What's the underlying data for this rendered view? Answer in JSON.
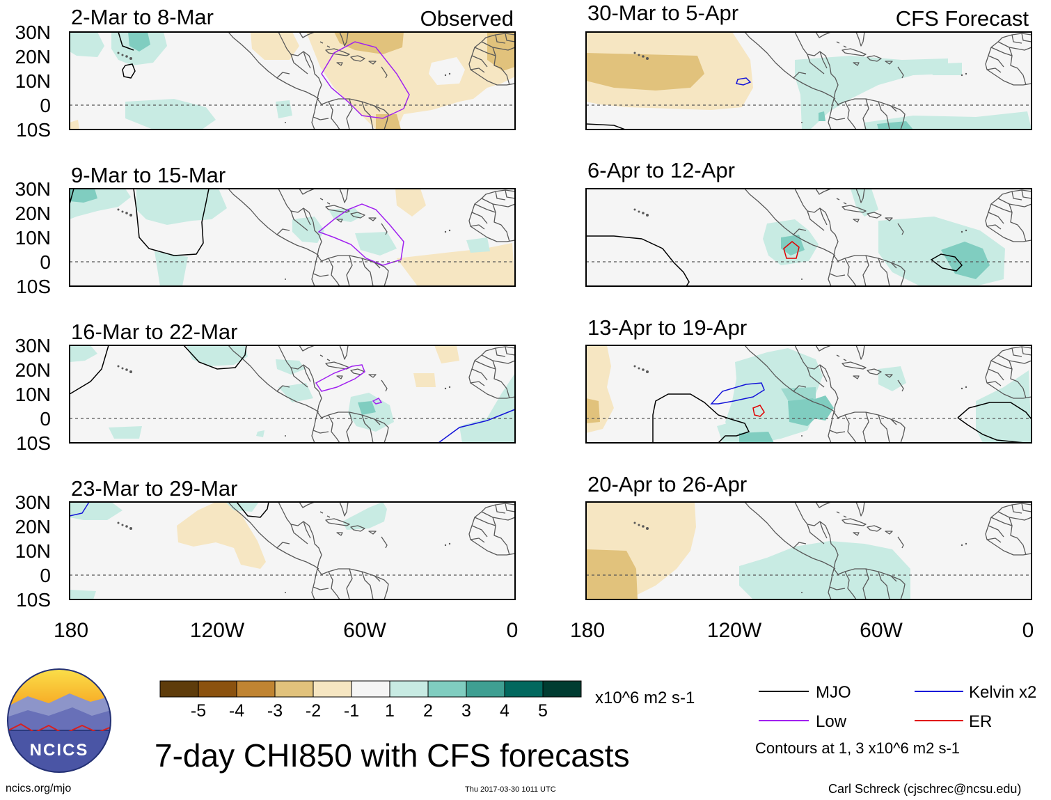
{
  "title": "7-day CHI850 with CFS forecasts",
  "header_labels": {
    "observed": "Observed",
    "forecast": "CFS Forecast"
  },
  "panels": [
    {
      "period": "2-Mar to 8-Mar",
      "column": "observed",
      "tag": "Observed"
    },
    {
      "period": "9-Mar to 15-Mar",
      "column": "observed",
      "tag": ""
    },
    {
      "period": "16-Mar to 22-Mar",
      "column": "observed",
      "tag": ""
    },
    {
      "period": "23-Mar to 29-Mar",
      "column": "observed",
      "tag": ""
    },
    {
      "period": "30-Mar to 5-Apr",
      "column": "forecast",
      "tag": "CFS Forecast"
    },
    {
      "period": "6-Apr to 12-Apr",
      "column": "forecast",
      "tag": ""
    },
    {
      "period": "13-Apr to 19-Apr",
      "column": "forecast",
      "tag": ""
    },
    {
      "period": "20-Apr to 26-Apr",
      "column": "forecast",
      "tag": ""
    }
  ],
  "axes": {
    "lat_labels": [
      "30N",
      "20N",
      "10N",
      "0",
      "10S"
    ],
    "lon_labels": [
      "180",
      "120W",
      "60W",
      "0"
    ]
  },
  "colorbar": {
    "colors": [
      "#5e3c0b",
      "#8b520f",
      "#c08432",
      "#e1c27c",
      "#f6e6c2",
      "#f5f5f5",
      "#c8ebe3",
      "#80cdc0",
      "#3f9f92",
      "#02685e",
      "#003c31"
    ],
    "tick_labels": [
      "-5",
      "-4",
      "-3",
      "-2",
      "-1",
      "1",
      "2",
      "3",
      "4",
      "5"
    ],
    "units": "x10^6 m2 s-1"
  },
  "legend": {
    "items": [
      {
        "label": "MJO",
        "color": "#000000"
      },
      {
        "label": "Kelvin x2",
        "color": "#1414d9"
      },
      {
        "label": "Low",
        "color": "#a020f0"
      },
      {
        "label": "ER",
        "color": "#e00000"
      }
    ],
    "note": "Contours at 1, 3 x10^6 m2 s-1"
  },
  "logo": {
    "text": "NCICS"
  },
  "footer": {
    "site": "ncics.org/mjo",
    "timestamp": "Thu 2017-03-30 1011 UTC",
    "author": "Carl Schreck (cjschrec@ncsu.edu)"
  }
}
